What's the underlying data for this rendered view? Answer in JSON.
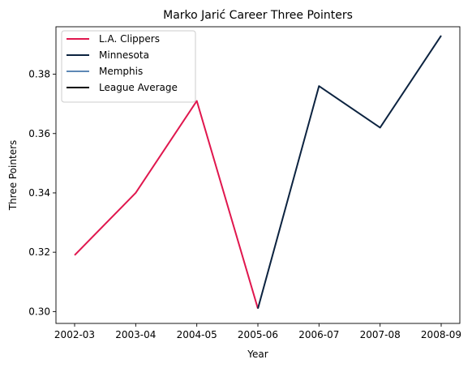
{
  "chart_data": {
    "type": "line",
    "title": "Marko Jarić Career Three Pointers",
    "xlabel": "Year",
    "ylabel": "Three Pointers",
    "categories": [
      "2002-03",
      "2003-04",
      "2004-05",
      "2005-06",
      "2006-07",
      "2007-08",
      "2008-09"
    ],
    "ylim": [
      0.296,
      0.396
    ],
    "yticks": [
      0.3,
      0.32,
      0.34,
      0.36,
      0.38
    ],
    "ytick_labels": [
      "0.30",
      "0.32",
      "0.34",
      "0.36",
      "0.38"
    ],
    "grid": false,
    "legend_position": "upper-left",
    "series": [
      {
        "name": "L.A. Clippers",
        "color": "#e0174e",
        "points": [
          {
            "x": "2002-03",
            "y": 0.319
          },
          {
            "x": "2003-04",
            "y": 0.34
          },
          {
            "x": "2004-05",
            "y": 0.371
          },
          {
            "x": "2005-06",
            "y": 0.301
          }
        ]
      },
      {
        "name": "Minnesota",
        "color": "#0c2340",
        "points": [
          {
            "x": "2005-06",
            "y": 0.301
          },
          {
            "x": "2006-07",
            "y": 0.376
          },
          {
            "x": "2007-08",
            "y": 0.362
          },
          {
            "x": "2008-09",
            "y": 0.393
          }
        ]
      },
      {
        "name": "Memphis",
        "color": "#5d88b5",
        "points": []
      },
      {
        "name": "League Average",
        "color": "#000000",
        "points": []
      }
    ]
  }
}
